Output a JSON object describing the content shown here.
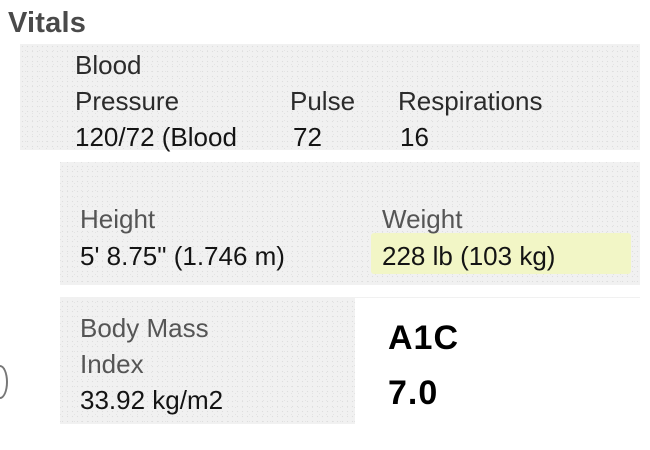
{
  "vitals": {
    "title": "Vitals",
    "blood_pressure": {
      "label_line1": "Blood",
      "label_line2": "Pressure",
      "value": "120/72 (Blood"
    },
    "pulse": {
      "label": "Pulse",
      "value": "72"
    },
    "respirations": {
      "label": "Respirations",
      "value": "16"
    },
    "height": {
      "label": "Height",
      "value": "5' 8.75\" (1.746 m)"
    },
    "weight": {
      "label": "Weight",
      "value": "228 lb (103 kg)",
      "highlight_color": "#f2f6c6"
    },
    "bmi": {
      "label_line1": "Body Mass",
      "label_line2": "Index",
      "value": "33.92 kg/m2"
    }
  },
  "annotation": {
    "label": "A1C",
    "value": "7.0"
  }
}
